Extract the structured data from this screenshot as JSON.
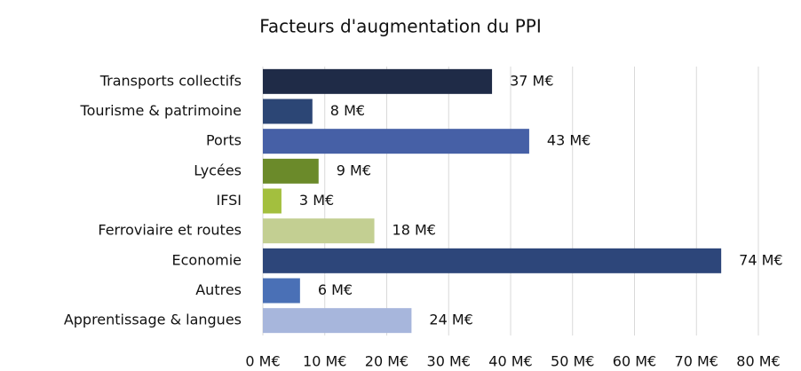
{
  "chart_data": {
    "type": "barh",
    "title": "Facteurs d'augmentation du PPI",
    "categories": [
      "Transports collectifs",
      "Tourisme & patrimoine",
      "Ports",
      "Lycées",
      "IFSI",
      "Ferroviaire et routes",
      "Economie",
      "Autres",
      "Apprentissage & langues"
    ],
    "values": [
      37,
      8,
      43,
      9,
      3,
      18,
      74,
      6,
      24
    ],
    "value_labels": [
      "37 M€",
      "8 M€",
      "43 M€",
      "9 M€",
      "3 M€",
      "18 M€",
      "74 M€",
      "6 M€",
      "24 M€"
    ],
    "colors": [
      "#1f2b47",
      "#2c4675",
      "#4660a6",
      "#6b8a2a",
      "#a3bf3e",
      "#c3cf92",
      "#2d467a",
      "#4a70b6",
      "#a7b6dc"
    ],
    "xlim": [
      0,
      80
    ],
    "xticks": [
      {
        "value": 0,
        "label": "0 M€"
      },
      {
        "value": 10,
        "label": "10 M€"
      },
      {
        "value": 20,
        "label": "20 M€"
      },
      {
        "value": 30,
        "label": "30 M€"
      },
      {
        "value": 40,
        "label": "40 M€"
      },
      {
        "value": 50,
        "label": "50 M€"
      },
      {
        "value": 60,
        "label": "60 M€"
      },
      {
        "value": 70,
        "label": "70 M€"
      },
      {
        "value": 80,
        "label": "80 M€"
      }
    ],
    "grid": true
  }
}
